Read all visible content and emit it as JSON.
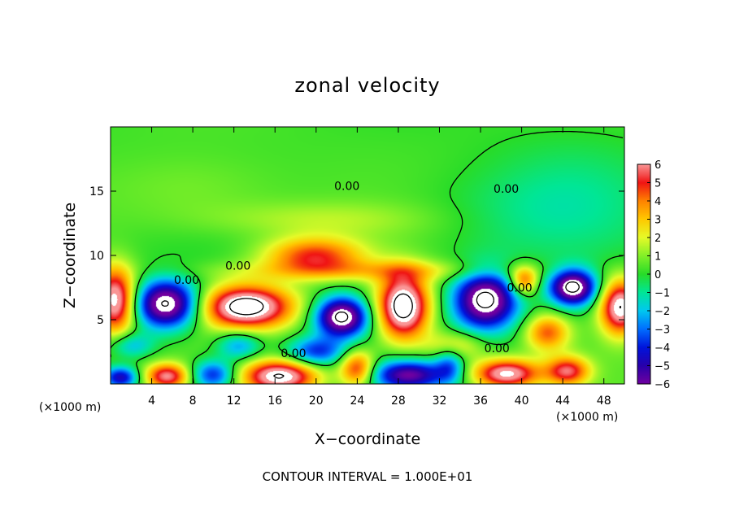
{
  "chart_data": {
    "type": "heatmap",
    "title": "zonal velocity",
    "xlabel": "X−coordinate",
    "ylabel": "Z−coordinate",
    "x_unit_left": "(×1000 m)",
    "x_unit_right": "(×1000 m)",
    "footnote": "CONTOUR INTERVAL = 1.000E+01",
    "xlim": [
      0,
      50
    ],
    "ylim": [
      0,
      20
    ],
    "x_ticks": [
      4,
      8,
      12,
      16,
      20,
      24,
      28,
      32,
      36,
      40,
      44,
      48
    ],
    "y_ticks": [
      5,
      10,
      15
    ],
    "colorbar": {
      "min": -6,
      "max": 6,
      "ticks": [
        6,
        5,
        4,
        3,
        2,
        1,
        0,
        -1,
        -2,
        -3,
        -4,
        -5,
        -6
      ],
      "tick_labels": [
        "6",
        "5",
        "4",
        "3",
        "2",
        "1",
        "0",
        "−1",
        "−2",
        "−3",
        "−4",
        "−5",
        "−6"
      ]
    },
    "contour_labels": [
      {
        "text": "0.00",
        "x": 23.0,
        "z": 15.4
      },
      {
        "text": "0.00",
        "x": 38.5,
        "z": 15.2
      },
      {
        "text": "0.00",
        "x": 12.4,
        "z": 9.2
      },
      {
        "text": "0.00",
        "x": 7.4,
        "z": 8.1
      },
      {
        "text": "0.00",
        "x": 17.8,
        "z": 2.4
      },
      {
        "text": "0.00",
        "x": 37.6,
        "z": 2.8
      },
      {
        "text": "0.00",
        "x": 39.8,
        "z": 7.5
      }
    ],
    "field_features": [
      {
        "x": 5.5,
        "z": 6.2,
        "sx": 2.2,
        "sz": 1.3,
        "v": -8
      },
      {
        "x": 13.2,
        "z": 6.0,
        "sx": 3.2,
        "sz": 1.2,
        "v": 8
      },
      {
        "x": 19.8,
        "z": 10.0,
        "sx": 3.5,
        "sz": 1.0,
        "v": 4.5
      },
      {
        "x": 22.5,
        "z": 5.2,
        "sx": 1.8,
        "sz": 1.1,
        "v": -8
      },
      {
        "x": 28.5,
        "z": 6.0,
        "sx": 1.8,
        "sz": 1.8,
        "v": 8
      },
      {
        "x": 36.5,
        "z": 6.5,
        "sx": 2.2,
        "sz": 1.6,
        "v": -8
      },
      {
        "x": 45.0,
        "z": 7.5,
        "sx": 1.6,
        "sz": 1.0,
        "v": -8
      },
      {
        "x": 49.6,
        "z": 6.0,
        "sx": 1.4,
        "sz": 1.5,
        "v": 7
      },
      {
        "x": 0.5,
        "z": 6.5,
        "sx": 1.4,
        "sz": 1.8,
        "v": 7
      },
      {
        "x": 40.2,
        "z": 8.0,
        "sx": 1.0,
        "sz": 0.8,
        "v": 4.5
      },
      {
        "x": 16.5,
        "z": 0.6,
        "sx": 2.6,
        "sz": 0.9,
        "v": 7
      },
      {
        "x": 5.5,
        "z": 0.6,
        "sx": 1.5,
        "sz": 0.7,
        "v": 5.5
      },
      {
        "x": 24.0,
        "z": 1.2,
        "sx": 1.2,
        "sz": 1.0,
        "v": 5
      },
      {
        "x": 29.0,
        "z": 0.7,
        "sx": 2.5,
        "sz": 0.8,
        "v": -6
      },
      {
        "x": 38.5,
        "z": 0.8,
        "sx": 2.3,
        "sz": 0.8,
        "v": 6.5
      },
      {
        "x": 44.5,
        "z": 1.0,
        "sx": 1.5,
        "sz": 0.8,
        "v": 5
      },
      {
        "x": 10.0,
        "z": 0.7,
        "sx": 1.5,
        "sz": 0.8,
        "v": -4.5
      },
      {
        "x": 20.0,
        "z": 2.5,
        "sx": 2.0,
        "sz": 0.8,
        "v": -4
      },
      {
        "x": 33.5,
        "z": 3.0,
        "sx": 2.0,
        "sz": 0.8,
        "v": 2.5
      },
      {
        "x": 2.0,
        "z": 3.0,
        "sx": 1.5,
        "sz": 0.7,
        "v": -2.5
      },
      {
        "x": 12.5,
        "z": 3.0,
        "sx": 1.5,
        "sz": 0.8,
        "v": -3
      },
      {
        "x": 42.5,
        "z": 4.0,
        "sx": 1.5,
        "sz": 1.0,
        "v": 4
      },
      {
        "x": 33.0,
        "z": 1.5,
        "sx": 1.0,
        "sz": 1.0,
        "v": -3
      },
      {
        "x": 1.0,
        "z": 0.5,
        "sx": 1.2,
        "sz": 0.6,
        "v": -5
      },
      {
        "x": 25.0,
        "z": 8.8,
        "sx": 10.0,
        "sz": 0.6,
        "v": 2.0
      },
      {
        "x": 40.0,
        "z": 13.0,
        "sx": 8.0,
        "sz": 2.5,
        "v": -0.8
      },
      {
        "x": 8.0,
        "z": 15.0,
        "sx": 6.0,
        "sz": 2.0,
        "v": 0.8
      },
      {
        "x": 20.0,
        "z": 12.8,
        "sx": 8.0,
        "sz": 1.0,
        "v": 1.2
      },
      {
        "x": 45.0,
        "z": 16.0,
        "sx": 6.0,
        "sz": 3.0,
        "v": -0.6
      }
    ]
  }
}
